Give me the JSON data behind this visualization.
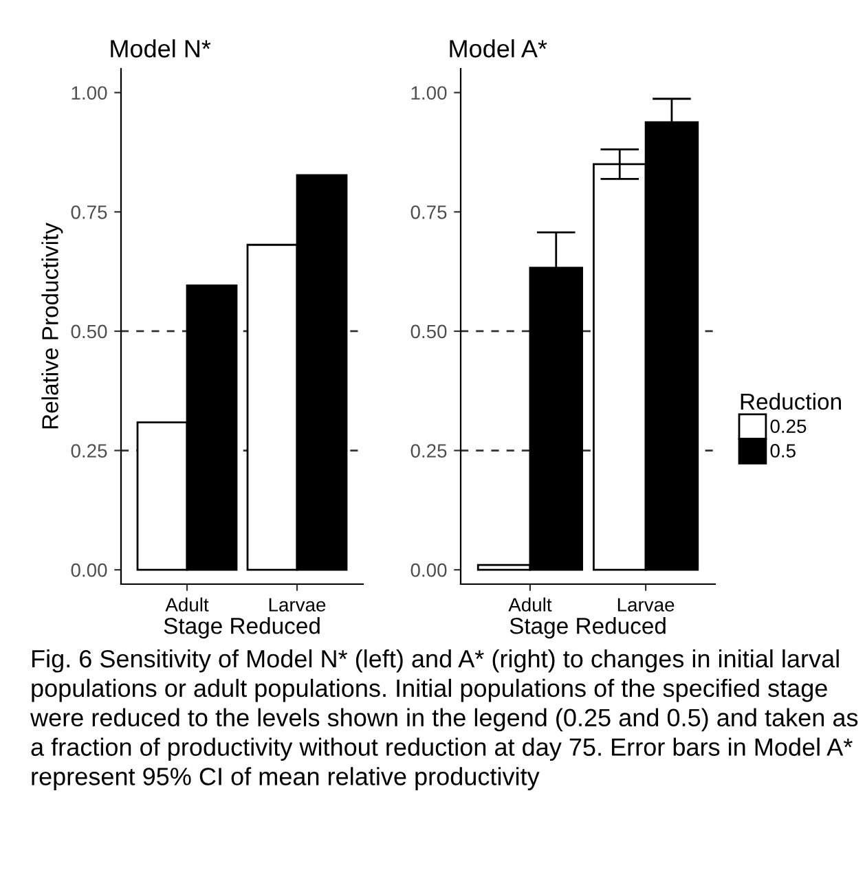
{
  "chart_data": [
    {
      "type": "bar",
      "title": "Model N*",
      "xlabel": "Stage Reduced",
      "ylabel": "Relative Productivity",
      "categories": [
        "Adult",
        "Larvae"
      ],
      "series": [
        {
          "name": "0.25",
          "color": "#ffffff",
          "values": [
            0.309,
            0.681
          ]
        },
        {
          "name": "0.5",
          "color": "#000000",
          "values": [
            0.596,
            0.827
          ]
        }
      ],
      "ylim": [
        -0.03,
        1.05
      ],
      "yticks": [
        {
          "value": 0,
          "label": "0.00"
        },
        {
          "value": 0.25,
          "label": "0.25"
        },
        {
          "value": 0.5,
          "label": "0.50"
        },
        {
          "value": 0.75,
          "label": "0.75"
        },
        {
          "value": 1,
          "label": "1.00"
        }
      ],
      "ref_lines": [
        {
          "axis": "y",
          "value": 0.25,
          "line_style": "dashed"
        },
        {
          "axis": "y",
          "value": 0.5,
          "line_style": "dashed"
        }
      ],
      "grid": false,
      "legend": "right",
      "legend_title": "Reduction",
      "annotations": [
        "Fig. 6 Sensitivity of Model N* (left) and A* (right) to changes in initial larval populations or adult populations. Initial populations of the specified stage were reduced to the levels shown in the legend (0.25 and 0.5) and taken as a fraction of productivity without reduction at day 75. Error bars in Model A* represent 95% CI of mean relative productivity"
      ]
    },
    {
      "type": "bar",
      "title": "Model A*",
      "xlabel": "Stage Reduced",
      "categories": [
        "Adult",
        "Larvae"
      ],
      "series": [
        {
          "name": "0.25",
          "color": "#ffffff",
          "values": [
            0.01,
            0.85
          ],
          "errors": [
            null,
            0.031
          ]
        },
        {
          "name": "0.5",
          "color": "#000000",
          "values": [
            0.633,
            0.938
          ],
          "errors": [
            0.074,
            0.049
          ]
        }
      ],
      "ylim": [
        -0.03,
        1.05
      ],
      "yticks": [
        {
          "value": 0,
          "label": "0.00"
        },
        {
          "value": 0.25,
          "label": "0.25"
        },
        {
          "value": 0.5,
          "label": "0.50"
        },
        {
          "value": 0.75,
          "label": "0.75"
        },
        {
          "value": 1,
          "label": "1.00"
        }
      ],
      "ref_lines": [
        {
          "axis": "y",
          "value": 0.25,
          "line_style": "dashed"
        },
        {
          "axis": "y",
          "value": 0.5,
          "line_style": "dashed"
        }
      ],
      "grid": false
    }
  ]
}
